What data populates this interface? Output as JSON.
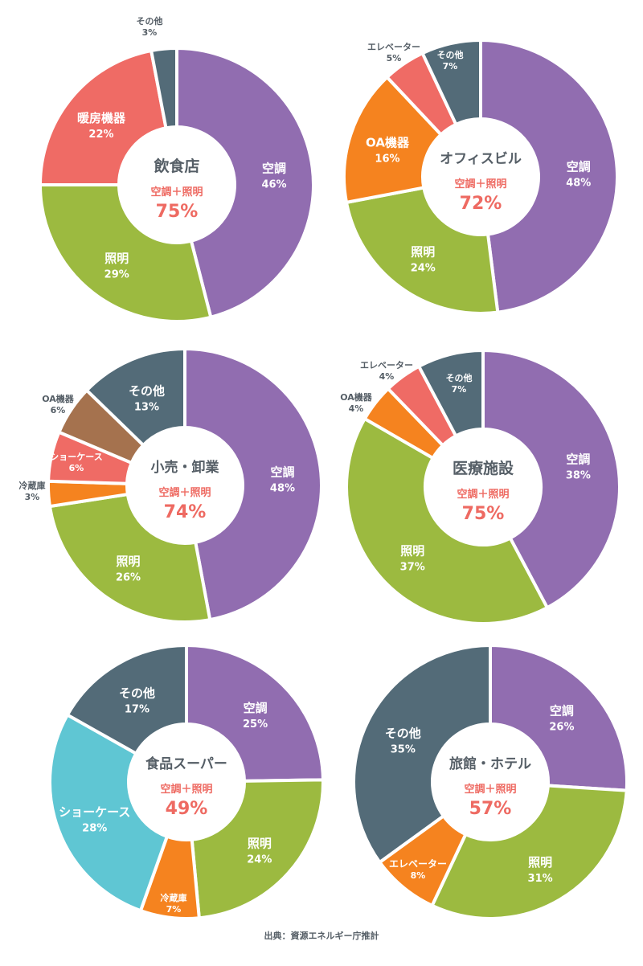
{
  "source": "出典：資源エネルギー庁推計",
  "colors": {
    "purple": "#916db0",
    "green": "#9cba40",
    "slate": "#536b78",
    "salmon": "#ef6b65",
    "orange": "#f5831f",
    "brown": "#a5724e",
    "cyan": "#5fc6d3",
    "accent": "#ee6a62",
    "title": "#555e66"
  },
  "chart_data": [
    {
      "type": "pie",
      "title": "飲食店",
      "subtitle": "空調＋照明",
      "total": "75%",
      "slices": [
        {
          "label": "空調",
          "value": 46,
          "text": "46%",
          "color": "#916db0"
        },
        {
          "label": "照明",
          "value": 29,
          "text": "29%",
          "color": "#9cba40"
        },
        {
          "label": "暖房機器",
          "value": 22,
          "text": "22%",
          "color": "#ef6b65"
        },
        {
          "label": "その他",
          "value": 3,
          "text": "3%",
          "color": "#536b78"
        }
      ]
    },
    {
      "type": "pie",
      "title": "オフィスビル",
      "subtitle": "空調＋照明",
      "total": "72%",
      "slices": [
        {
          "label": "空調",
          "value": 48,
          "text": "48%",
          "color": "#916db0"
        },
        {
          "label": "照明",
          "value": 24,
          "text": "24%",
          "color": "#9cba40"
        },
        {
          "label": "OA機器",
          "value": 16,
          "text": "16%",
          "color": "#f5831f"
        },
        {
          "label": "エレベーター",
          "value": 5,
          "text": "5%",
          "color": "#ef6b65"
        },
        {
          "label": "その他",
          "value": 7,
          "text": "7%",
          "color": "#536b78"
        }
      ]
    },
    {
      "type": "pie",
      "title": "小売・卸業",
      "subtitle": "空調＋照明",
      "total": "74%",
      "slices": [
        {
          "label": "空調",
          "value": 48,
          "text": "48%",
          "color": "#916db0"
        },
        {
          "label": "照明",
          "value": 26,
          "text": "26%",
          "color": "#9cba40"
        },
        {
          "label": "冷蔵庫",
          "value": 3,
          "text": "3%",
          "color": "#f5831f"
        },
        {
          "label": "ショーケース",
          "value": 6,
          "text": "6%",
          "color": "#ef6b65"
        },
        {
          "label": "OA機器",
          "value": 6,
          "text": "6%",
          "color": "#a5724e"
        },
        {
          "label": "その他",
          "value": 13,
          "text": "13%",
          "color": "#536b78"
        }
      ]
    },
    {
      "type": "pie",
      "title": "医療施設",
      "subtitle": "空調＋照明",
      "total": "75%",
      "slices": [
        {
          "label": "空調",
          "value": 38,
          "text": "38%",
          "color": "#916db0"
        },
        {
          "label": "照明",
          "value": 37,
          "text": "37%",
          "color": "#9cba40"
        },
        {
          "label": "OA機器",
          "value": 4,
          "text": "4%",
          "color": "#f5831f"
        },
        {
          "label": "エレベーター",
          "value": 4,
          "text": "4%",
          "color": "#ef6b65"
        },
        {
          "label": "その他",
          "value": 7,
          "text": "7%",
          "color": "#536b78"
        }
      ]
    },
    {
      "type": "pie",
      "title": "食品スーパー",
      "subtitle": "空調＋照明",
      "total": "49%",
      "slices": [
        {
          "label": "空調",
          "value": 25,
          "text": "25%",
          "color": "#916db0"
        },
        {
          "label": "照明",
          "value": 24,
          "text": "24%",
          "color": "#9cba40"
        },
        {
          "label": "冷蔵庫",
          "value": 7,
          "text": "7%",
          "color": "#f5831f"
        },
        {
          "label": "ショーケース",
          "value": 28,
          "text": "28%",
          "color": "#5fc6d3"
        },
        {
          "label": "その他",
          "value": 17,
          "text": "17%",
          "color": "#536b78"
        }
      ]
    },
    {
      "type": "pie",
      "title": "旅館・ホテル",
      "subtitle": "空調＋照明",
      "total": "57%",
      "slices": [
        {
          "label": "空調",
          "value": 26,
          "text": "26%",
          "color": "#916db0"
        },
        {
          "label": "照明",
          "value": 31,
          "text": "31%",
          "color": "#9cba40"
        },
        {
          "label": "エレベーター",
          "value": 8,
          "text": "8%",
          "color": "#f5831f"
        },
        {
          "label": "その他",
          "value": 35,
          "text": "35%",
          "color": "#536b78"
        }
      ]
    }
  ]
}
